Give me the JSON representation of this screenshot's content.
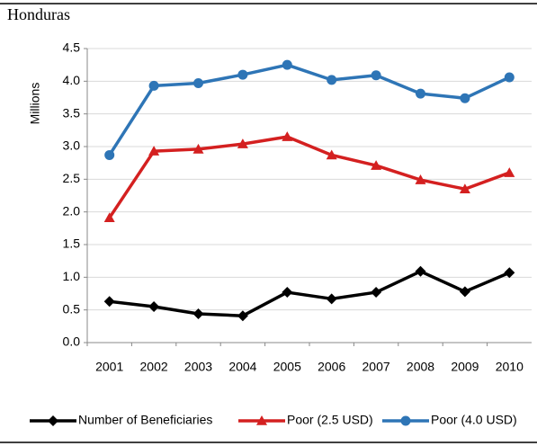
{
  "chart_data": {
    "type": "line",
    "title": "Honduras",
    "y_label": "Millions",
    "categories": [
      "2001",
      "2002",
      "2003",
      "2004",
      "2005",
      "2006",
      "2007",
      "2008",
      "2009",
      "2010"
    ],
    "series": [
      {
        "name": "Number of Beneficiaries",
        "color": "#000000",
        "marker": "diamond",
        "values": [
          0.63,
          0.55,
          0.44,
          0.41,
          0.77,
          0.67,
          0.77,
          1.09,
          0.78,
          1.07
        ]
      },
      {
        "name": "Poor (2.5 USD)",
        "color": "#d42020",
        "marker": "triangle",
        "values": [
          1.91,
          2.93,
          2.96,
          3.04,
          3.15,
          2.87,
          2.71,
          2.49,
          2.35,
          2.6
        ]
      },
      {
        "name": "Poor (4.0 USD)",
        "color": "#2e75b6",
        "marker": "circle",
        "values": [
          2.87,
          3.93,
          3.97,
          4.1,
          4.25,
          4.02,
          4.09,
          3.81,
          3.74,
          4.06
        ]
      }
    ],
    "ylim": [
      0,
      4.5
    ],
    "yticks": [
      {
        "value": 0,
        "label": "0.0"
      },
      {
        "value": 0.5,
        "label": "0.5"
      },
      {
        "value": 1,
        "label": "1.0"
      },
      {
        "value": 1.5,
        "label": "1.5"
      },
      {
        "value": 2,
        "label": "2.0"
      },
      {
        "value": 2.5,
        "label": "2.5"
      },
      {
        "value": 3,
        "label": "3.0"
      },
      {
        "value": 3.5,
        "label": "3.5"
      },
      {
        "value": 4,
        "label": "4.0"
      },
      {
        "value": 4.5,
        "label": "4.5"
      }
    ],
    "grid": true,
    "legend": "bottom"
  }
}
